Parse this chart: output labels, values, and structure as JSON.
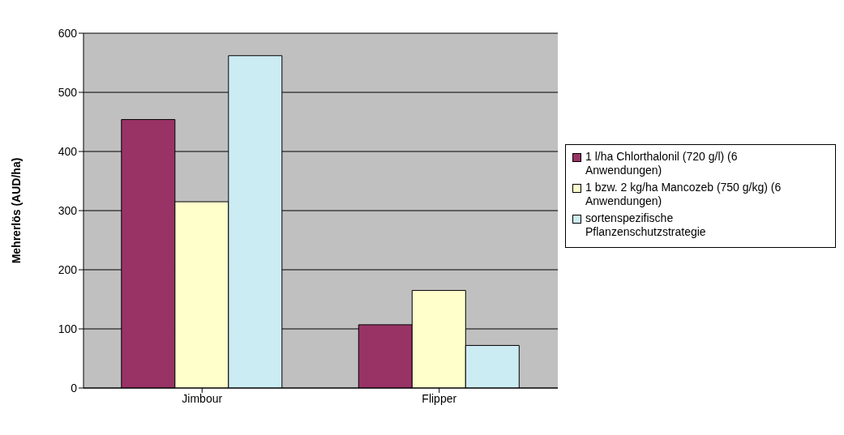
{
  "chart_data": {
    "type": "bar",
    "ylabel": "Mehrerlös (AUD/ha)",
    "categories": [
      "Jimbour",
      "Flipper"
    ],
    "series": [
      {
        "name": "1 l/ha Chlorthalonil (720 g/l) (6 Anwendungen)",
        "color": "#993366",
        "values": [
          454,
          107
        ]
      },
      {
        "name": "1 bzw. 2 kg/ha Mancozeb (750 g/kg) (6 Anwendungen)",
        "color": "#ffffcc",
        "values": [
          315,
          165
        ]
      },
      {
        "name": "sortenspezifische Pflanzenschutzstrategie",
        "color": "#ccecf4",
        "values": [
          562,
          72
        ]
      }
    ],
    "ylim": [
      0,
      600
    ],
    "yticks": [
      0,
      100,
      200,
      300,
      400,
      500,
      600
    ],
    "grid": "y",
    "legend": "right"
  }
}
